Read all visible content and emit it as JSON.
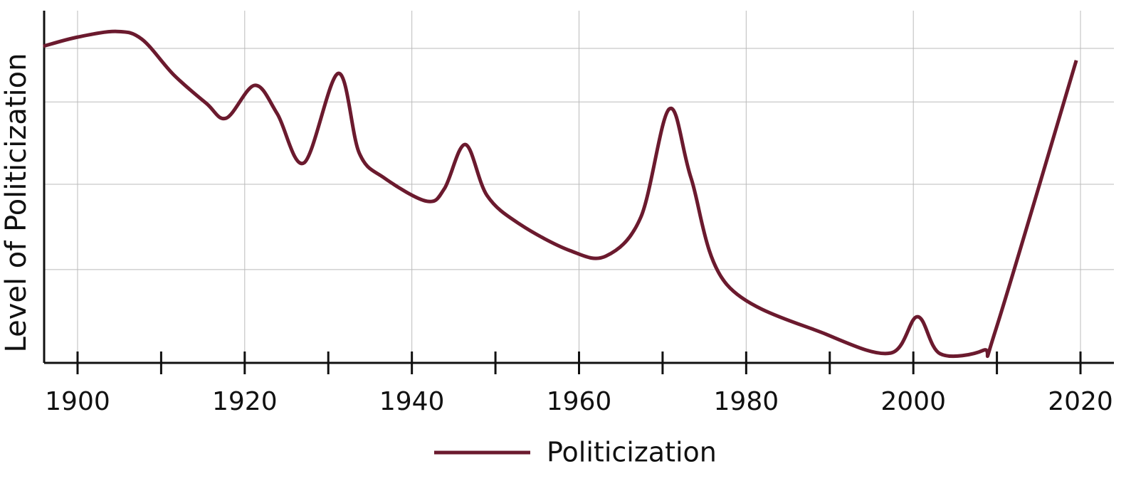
{
  "chart_data": {
    "type": "line",
    "ylabel": "Level of Politicization",
    "x": [
      1895.9,
      1900,
      1904.7,
      1907.7,
      1911.5,
      1915.4,
      1917.8,
      1921.2,
      1923.9,
      1927.1,
      1931.2,
      1933.7,
      1936.7,
      1941.8,
      1943.9,
      1946.4,
      1949.0,
      1952.9,
      1958.9,
      1963.2,
      1967.4,
      1970.8,
      1973.4,
      1977.7,
      1989.6,
      1997.3,
      2000.5,
      2003.2,
      2008.4,
      2009.9,
      2019.5
    ],
    "series": [
      {
        "name": "Politicization",
        "color": "#6b1a2e",
        "values": [
          89.9,
          92.5,
          94.1,
          91.9,
          81.8,
          73.7,
          69.5,
          78.8,
          70.7,
          56.8,
          82.2,
          59.6,
          52.5,
          45.9,
          49.5,
          62.0,
          47.5,
          39.4,
          31.9,
          30.3,
          41.4,
          72.1,
          52.5,
          22.2,
          8.1,
          2.8,
          13.1,
          2.6,
          3.6,
          9.7,
          85.9
        ]
      }
    ],
    "xlim": [
      1896,
      2024
    ],
    "ylim": [
      0,
      100
    ],
    "xticks": [
      1900,
      1920,
      1940,
      1960,
      1980,
      2000,
      2020
    ],
    "xminorticks": [
      1910,
      1930,
      1950,
      1970,
      1990,
      2010
    ],
    "ygrid": [
      26.5,
      50.7,
      74.1,
      89.3
    ],
    "grid": true,
    "legend": "bottom"
  }
}
